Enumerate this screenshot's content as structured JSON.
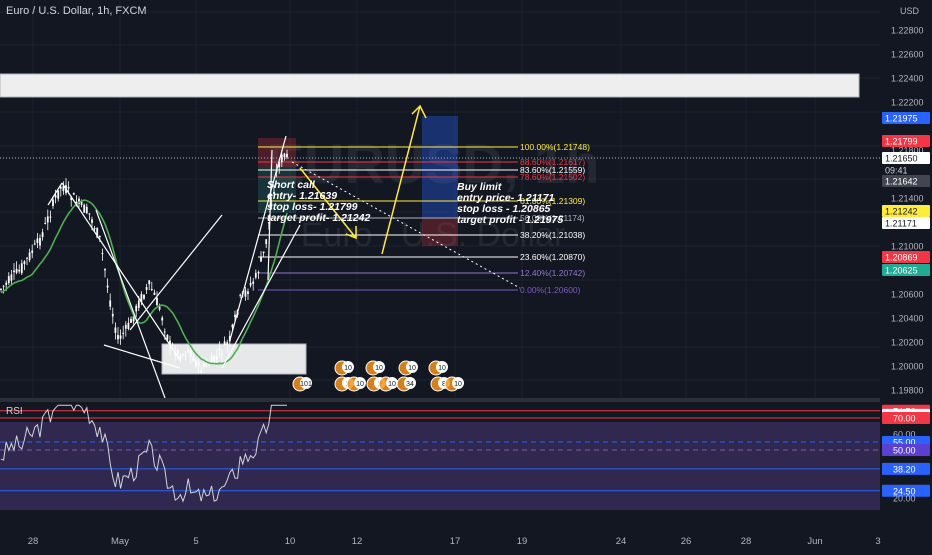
{
  "header": {
    "symbol_title": "Euro / U.S. Dollar, 1h, FXCM"
  },
  "watermark": {
    "symbol": "EURUSD, 1h",
    "name": "Euro / U.S. Dollar"
  },
  "price_axis": {
    "currency": "USD",
    "ticks": [
      "1.22800",
      "1.22600",
      "1.22400",
      "1.22200",
      "1.21800",
      "1.21600",
      "1.21400",
      "1.21200",
      "1.21000",
      "1.20800",
      "1.20600",
      "1.20400",
      "1.20200",
      "1.20000",
      "1.19800"
    ]
  },
  "price_labels": [
    {
      "value": "1.21975",
      "color": "#2962ff",
      "text_color": "#ffffff"
    },
    {
      "value": "1.21799",
      "color": "#f23645",
      "text_color": "#ffffff"
    },
    {
      "value": "1.21650",
      "color": "#ffffff",
      "text_color": "#131722"
    },
    {
      "value": "09:41",
      "color": "#131722",
      "text_color": "#d1d4dc"
    },
    {
      "value": "1.21642",
      "color": "#434651",
      "text_color": "#ffffff"
    },
    {
      "value": "1.21242",
      "color": "#ffeb3b",
      "text_color": "#131722"
    },
    {
      "value": "1.21171",
      "color": "#ffffff",
      "text_color": "#131722"
    },
    {
      "value": "1.20869",
      "color": "#f23645",
      "text_color": "#ffffff"
    },
    {
      "value": "1.20625",
      "color": "#22ab94",
      "text_color": "#ffffff"
    }
  ],
  "fib_levels": [
    {
      "label": "100.00%(1.21748)",
      "color": "#ffeb3b"
    },
    {
      "label": "88.60%(1.21617)",
      "color": "#f23645"
    },
    {
      "label": "83.60%(1.21559)",
      "color": "#ffffff"
    },
    {
      "label": "78.60%(1.21502)",
      "color": "#f23645"
    },
    {
      "label": "61.80%(1.21309)",
      "color": "#ffeb3b"
    },
    {
      "label": "50.00%(1.21174)",
      "color": "#b2b5be"
    },
    {
      "label": "38.20%(1.21038)",
      "color": "#ffffff"
    },
    {
      "label": "23.60%(1.20870)",
      "color": "#ffffff"
    },
    {
      "label": "12.40%(1.20742)",
      "color": "#9575cd"
    },
    {
      "label": "0.00%(1.20600)",
      "color": "#7e57c2"
    }
  ],
  "annotations": {
    "short": [
      "Short call",
      "entry- 1.21639",
      "stop loss- 1.21799",
      "target profit- 1.21242"
    ],
    "long": [
      "Buy limit",
      "entry price- 1.21171",
      "stop loss - 1.20865",
      "target profit - 1.21975"
    ]
  },
  "events": [
    {
      "count": "10"
    },
    {
      "count": "10"
    },
    {
      "count": "10"
    },
    {
      "count": "10"
    },
    {
      "count": "101"
    },
    {
      "count": "2"
    },
    {
      "count": "10"
    },
    {
      "count": "2"
    },
    {
      "count": "10"
    },
    {
      "count": "34"
    },
    {
      "count": "8"
    },
    {
      "count": "10"
    }
  ],
  "rsi": {
    "title": "RSI",
    "labels": [
      {
        "value": "74.50",
        "color": "#f23645",
        "text_color": "#ffffff"
      },
      {
        "value": "71.98",
        "color": "#ffffff",
        "text_color": "#131722"
      },
      {
        "value": "70.00",
        "color": "#f23645",
        "text_color": "#ffffff"
      },
      {
        "value": "60.00",
        "color": "none",
        "text_color": "#b2b5be"
      },
      {
        "value": "55.00",
        "color": "#2962ff",
        "text_color": "#ffffff"
      },
      {
        "value": "50.00",
        "color": "#5b3fd1",
        "text_color": "#ffffff"
      },
      {
        "value": "38.20",
        "color": "#2962ff",
        "text_color": "#ffffff"
      },
      {
        "value": "24.50",
        "color": "#2962ff",
        "text_color": "#ffffff"
      },
      {
        "value": "20.00",
        "color": "none",
        "text_color": "#b2b5be"
      }
    ]
  },
  "time_axis": {
    "ticks": [
      "28",
      "May",
      "5",
      "10",
      "12",
      "17",
      "19",
      "24",
      "26",
      "28",
      "Jun",
      "3"
    ]
  },
  "colors": {
    "bg": "#131722",
    "grid": "#1e222d",
    "axis_text": "#b2b5be",
    "ma": "#4caf50",
    "bull": "#ffffff",
    "bear": "#ffffff"
  }
}
